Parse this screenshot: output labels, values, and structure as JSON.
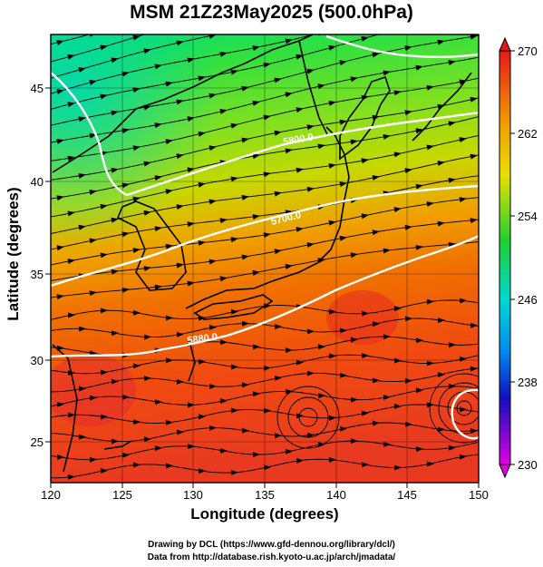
{
  "title": "MSM 21Z23May2025 (500.0hPa)",
  "xlabel": "Longitude (degrees)",
  "ylabel": "Latitude  (degrees)",
  "x_ticks": [
    "120",
    "125",
    "130",
    "135",
    "140",
    "145",
    "150"
  ],
  "y_ticks": [
    "25",
    "30",
    "35",
    "40",
    "45"
  ],
  "colorbar": {
    "min": 230,
    "max": 270,
    "tick_labels": [
      "270",
      "262",
      "254",
      "246",
      "238",
      "230"
    ]
  },
  "contour_labels": [
    "5880.0",
    "5800.0",
    "5700.0"
  ],
  "credits": {
    "line1": "Drawing by DCL (https://www.gfd-dennou.org/library/dcl/)",
    "line2": "Data from http://database.rish.kyoto-u.ac.jp/arch/jmadata/"
  },
  "map": {
    "lon_range": [
      120,
      150
    ],
    "lat_range": [
      22.5,
      47.5
    ],
    "field": "temperature (K) at 500hPa with wind streamlines and geopotential height contours"
  }
}
